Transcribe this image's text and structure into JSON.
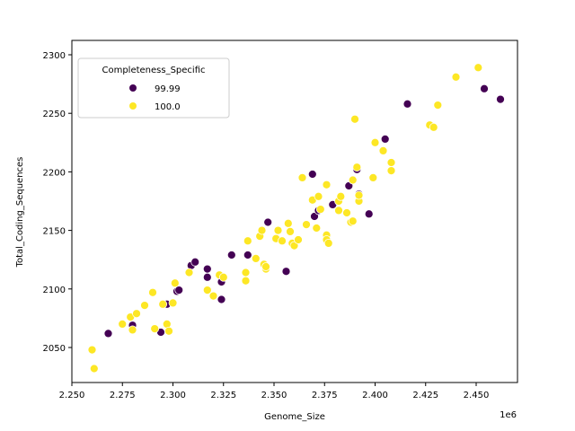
{
  "chart_data": {
    "type": "scatter",
    "title": "",
    "xlabel": "Genome_Size",
    "ylabel": "Total_Coding_Sequences",
    "x_offset_label": "1e6",
    "xlim": [
      2.2563,
      2.4767
    ],
    "ylim": [
      2022,
      2302
    ],
    "x_ticks": [
      2.25,
      2.275,
      2.3,
      2.325,
      2.35,
      2.375,
      2.4,
      2.425,
      2.45
    ],
    "x_tick_labels": [
      "2.250",
      "2.275",
      "2.300",
      "2.325",
      "2.350",
      "2.375",
      "2.400",
      "2.425",
      "2.450"
    ],
    "y_ticks": [
      2050,
      2100,
      2150,
      2200,
      2250,
      2300
    ],
    "y_tick_labels": [
      "2050",
      "2100",
      "2150",
      "2200",
      "2250",
      "2300"
    ],
    "grid": false,
    "legend": {
      "title": "Completeness_Specific",
      "position": "upper left",
      "entries": [
        {
          "label": "99.99",
          "color": "#440154"
        },
        {
          "label": "100.0",
          "color": "#fde725"
        }
      ]
    },
    "series": [
      {
        "name": "99.99",
        "color": "#440154",
        "points": [
          [
            2.268,
            2062
          ],
          [
            2.28,
            2069
          ],
          [
            2.294,
            2063
          ],
          [
            2.297,
            2087
          ],
          [
            2.302,
            2098
          ],
          [
            2.303,
            2099
          ],
          [
            2.309,
            2120
          ],
          [
            2.311,
            2123
          ],
          [
            2.317,
            2117
          ],
          [
            2.317,
            2110
          ],
          [
            2.324,
            2106
          ],
          [
            2.324,
            2091
          ],
          [
            2.329,
            2129
          ],
          [
            2.337,
            2129
          ],
          [
            2.347,
            2157
          ],
          [
            2.356,
            2115
          ],
          [
            2.369,
            2198
          ],
          [
            2.37,
            2162
          ],
          [
            2.372,
            2167
          ],
          [
            2.379,
            2172
          ],
          [
            2.387,
            2188
          ],
          [
            2.391,
            2202
          ],
          [
            2.392,
            2181
          ],
          [
            2.397,
            2164
          ],
          [
            2.405,
            2228
          ],
          [
            2.416,
            2258
          ],
          [
            2.454,
            2271
          ],
          [
            2.462,
            2262
          ]
        ]
      },
      {
        "name": "100.0",
        "color": "#fde725",
        "points": [
          [
            2.26,
            2048
          ],
          [
            2.261,
            2032
          ],
          [
            2.275,
            2070
          ],
          [
            2.279,
            2076
          ],
          [
            2.28,
            2065
          ],
          [
            2.282,
            2079
          ],
          [
            2.286,
            2086
          ],
          [
            2.29,
            2097
          ],
          [
            2.291,
            2066
          ],
          [
            2.295,
            2087
          ],
          [
            2.297,
            2070
          ],
          [
            2.298,
            2064
          ],
          [
            2.3,
            2088
          ],
          [
            2.301,
            2105
          ],
          [
            2.308,
            2114
          ],
          [
            2.317,
            2099
          ],
          [
            2.32,
            2094
          ],
          [
            2.323,
            2112
          ],
          [
            2.325,
            2110
          ],
          [
            2.336,
            2114
          ],
          [
            2.336,
            2107
          ],
          [
            2.337,
            2141
          ],
          [
            2.341,
            2126
          ],
          [
            2.343,
            2145
          ],
          [
            2.344,
            2150
          ],
          [
            2.345,
            2121
          ],
          [
            2.346,
            2117
          ],
          [
            2.346,
            2119
          ],
          [
            2.351,
            2143
          ],
          [
            2.352,
            2150
          ],
          [
            2.354,
            2141
          ],
          [
            2.357,
            2156
          ],
          [
            2.358,
            2149
          ],
          [
            2.359,
            2139
          ],
          [
            2.36,
            2137
          ],
          [
            2.362,
            2142
          ],
          [
            2.364,
            2195
          ],
          [
            2.366,
            2155
          ],
          [
            2.369,
            2176
          ],
          [
            2.371,
            2152
          ],
          [
            2.372,
            2179
          ],
          [
            2.373,
            2168
          ],
          [
            2.376,
            2189
          ],
          [
            2.376,
            2146
          ],
          [
            2.376,
            2142
          ],
          [
            2.377,
            2139
          ],
          [
            2.382,
            2167
          ],
          [
            2.382,
            2175
          ],
          [
            2.383,
            2179
          ],
          [
            2.386,
            2165
          ],
          [
            2.388,
            2157
          ],
          [
            2.389,
            2158
          ],
          [
            2.389,
            2193
          ],
          [
            2.39,
            2245
          ],
          [
            2.391,
            2204
          ],
          [
            2.392,
            2175
          ],
          [
            2.392,
            2180
          ],
          [
            2.399,
            2195
          ],
          [
            2.4,
            2225
          ],
          [
            2.404,
            2218
          ],
          [
            2.408,
            2208
          ],
          [
            2.408,
            2201
          ],
          [
            2.427,
            2240
          ],
          [
            2.429,
            2238
          ],
          [
            2.431,
            2257
          ],
          [
            2.44,
            2281
          ],
          [
            2.451,
            2289
          ]
        ]
      }
    ]
  }
}
